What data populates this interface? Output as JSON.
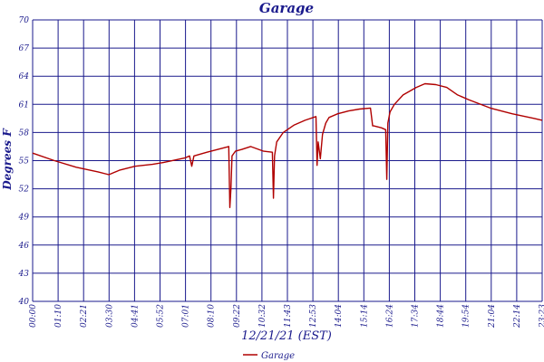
{
  "chart_data": {
    "type": "line",
    "title": "Garage",
    "xlabel": "12/21/21 (EST)",
    "ylabel": "Degrees F",
    "ylim": [
      40,
      70
    ],
    "y_ticks": [
      "70",
      "67",
      "64",
      "61",
      "58",
      "55",
      "52",
      "49",
      "46",
      "43",
      "40"
    ],
    "x_tick_labels": [
      "00:00",
      "01:10",
      "02:21",
      "03:30",
      "04:41",
      "05:52",
      "07:01",
      "08:10",
      "09:22",
      "10:32",
      "11:43",
      "12:53",
      "14:04",
      "15:14",
      "16:24",
      "17:34",
      "18:44",
      "19:54",
      "21:04",
      "22:14",
      "23:23"
    ],
    "x_range_hours": [
      0,
      23.38
    ],
    "grid": true,
    "legend_position": "bottom-center",
    "series": [
      {
        "name": "Garage",
        "color": "#b00000",
        "x": [
          0,
          1,
          2,
          3,
          3.5,
          4,
          4.7,
          5.5,
          6,
          7,
          7.2,
          7.3,
          7.4,
          8,
          8.5,
          9,
          9.05,
          9.1,
          9.15,
          9.3,
          9.6,
          10,
          10.6,
          11.0,
          11.05,
          11.1,
          11.2,
          11.5,
          12,
          12.5,
          13.0,
          13.05,
          13.1,
          13.2,
          13.3,
          13.45,
          13.6,
          14,
          14.5,
          15,
          15.5,
          15.6,
          15.65,
          16,
          16.2,
          16.25,
          16.3,
          16.4,
          16.6,
          17,
          17.6,
          18,
          18.5,
          19,
          19.5,
          20,
          21,
          22,
          23,
          23.38
        ],
        "y": [
          55.8,
          55.0,
          54.3,
          53.8,
          53.5,
          54.0,
          54.4,
          54.6,
          54.8,
          55.3,
          55.5,
          54.4,
          55.5,
          55.9,
          56.2,
          56.5,
          50.0,
          52.0,
          55.5,
          56.0,
          56.2,
          56.5,
          56.0,
          55.9,
          51.0,
          55.5,
          57.0,
          58.0,
          58.8,
          59.3,
          59.7,
          54.5,
          57.0,
          55.2,
          57.8,
          59.0,
          59.6,
          60.0,
          60.3,
          60.5,
          60.6,
          58.7,
          58.7,
          58.5,
          58.3,
          53.0,
          59.0,
          60.2,
          61.0,
          62.0,
          62.8,
          63.2,
          63.1,
          62.8,
          62.0,
          61.5,
          60.6,
          60.0,
          59.5,
          59.3
        ]
      }
    ]
  }
}
